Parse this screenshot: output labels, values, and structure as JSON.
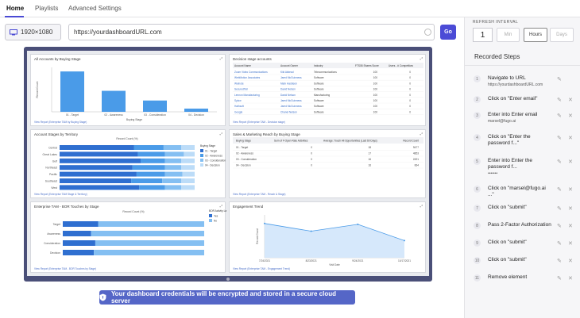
{
  "nav": {
    "tabs": [
      {
        "label": "Home"
      },
      {
        "label": "Playlists"
      },
      {
        "label": "Advanced Settings"
      }
    ]
  },
  "toolbar": {
    "resolution": "1920×1080",
    "url_value": "https://yourdashboardURL.com",
    "go_label": "Go"
  },
  "dashboard": {
    "panels": [
      {
        "title": "All Accounts by Buying Stage",
        "foot": "View Report (Enterprise TAM by Buying Stage)"
      },
      {
        "title": "Decision stage accounts",
        "foot": "View Report (Enterprise TAM - Decision stage)"
      },
      {
        "title": "Account Stages by Territory",
        "foot": "View Report (Enterprise TAM Stage & Territory)"
      },
      {
        "title": "Sales & Marketing Reach by Buying Stage",
        "foot": "View Report (Enterprise TAM - Reach & Stage)"
      },
      {
        "title": "Enterprise TAM - BOR Touches by Stage",
        "foot": "View Report (Enterprise TAM - BOR Touches by Stage)"
      },
      {
        "title": "Engagement Trend",
        "foot": "View Report (Enterprise TAM - Engagement Trend)"
      }
    ],
    "bar_chart": {
      "categories": [
        "01 - Target",
        "02 - Awareness",
        "03 - Consideration",
        "04 - Decision"
      ],
      "values": [
        100,
        52,
        28,
        8
      ],
      "ylim": [
        0,
        110
      ],
      "xlabel": "Buying Stage",
      "ylabel": "Record Count",
      "color": "#4a9be8"
    },
    "decision_table": {
      "headers": [
        "Account Name",
        "Account Owner",
        "Industry",
        "FTS08 Shares Score",
        "Users - # Competitors"
      ],
      "rows": [
        [
          "Zoom Video Communications",
          "Kiki Alstead",
          "Telecommunications",
          "100",
          "0"
        ],
        [
          "WebMotion Associates",
          "Jared McGuinness",
          "Software",
          "100",
          "0"
        ],
        [
          "Welnote",
          "Mark Haddeen",
          "Software",
          "100",
          "0"
        ],
        [
          "SecuredTail",
          "David Nelson",
          "Software",
          "100",
          "0"
        ],
        [
          "Lennon Manufacturing",
          "David Nelson",
          "Manufacturing",
          "100",
          "0"
        ],
        [
          "Sylow",
          "Jared McGuinness",
          "Software",
          "100",
          "0"
        ],
        [
          "Hathsoft",
          "Jared McGuinness",
          "Software",
          "100",
          "0"
        ],
        [
          "Google",
          "Chanel Nelson",
          "Software",
          "100",
          "0"
        ]
      ]
    },
    "territory_chart": {
      "title": "Record Count (%)",
      "territories": [
        "Central",
        "Great Lakes",
        "Gulf",
        "Northeast",
        "Pacific",
        "Southeast",
        "West"
      ],
      "legend_title": "Buying Stage",
      "legend": [
        "01 - Target",
        "02 - Awareness",
        "03 - Consideration",
        "04 - Decision"
      ],
      "colors": [
        "#2f6fd0",
        "#4a9be8",
        "#84bff2",
        "#bcdcf8"
      ],
      "shares": [
        [
          0.55,
          0.22,
          0.13,
          0.1
        ],
        [
          0.58,
          0.2,
          0.14,
          0.08
        ],
        [
          0.6,
          0.18,
          0.12,
          0.1
        ],
        [
          0.54,
          0.24,
          0.12,
          0.1
        ],
        [
          0.57,
          0.21,
          0.13,
          0.09
        ],
        [
          0.53,
          0.23,
          0.14,
          0.1
        ],
        [
          0.59,
          0.19,
          0.12,
          0.1
        ]
      ]
    },
    "reach_table": {
      "headers": [
        "Buying Stage",
        "Sum of # Open Rate Activities",
        "Average: Touch All Opportunities (Last 60 Days)",
        "Record Count"
      ],
      "rows": [
        [
          "01 - Target",
          "0",
          "18",
          "9477"
        ],
        [
          "02 - Awareness",
          "0",
          "17",
          "4853"
        ],
        [
          "03 - Consideration",
          "0",
          "16",
          "2491"
        ],
        [
          "04 - Decision",
          "0",
          "16",
          "664"
        ]
      ]
    },
    "bor_chart": {
      "title": "Record Count (%)",
      "categories": [
        "Target",
        "Awareness",
        "Consideration",
        "Decision"
      ],
      "legend_title": "BOR Activity Last",
      "legend": [
        "Yes",
        "No"
      ],
      "colors": [
        "#2f6fd0",
        "#84bff2"
      ],
      "yes_share": [
        0.25,
        0.2,
        0.23,
        0.22
      ]
    },
    "trend_chart": {
      "x": [
        "7/24/2021",
        "8/23/2021",
        "9/24/2021",
        "10/17/2021"
      ],
      "values": [
        80,
        62,
        78,
        40
      ],
      "ylim": [
        0,
        100
      ],
      "ylabel": "Record Count",
      "xlabel": "Visit Date",
      "color": "#4a9be8"
    }
  },
  "notice": "Your dashboard credentials will be encrypted and stored in a secure cloud server",
  "refresh": {
    "label": "REFRESH INTERVAL",
    "value": "1",
    "units": [
      {
        "label": "Min",
        "active": false
      },
      {
        "label": "Hours",
        "active": true
      },
      {
        "label": "Days",
        "active": false
      }
    ]
  },
  "recorded_steps": {
    "title": "Recorded Steps",
    "steps": [
      {
        "num": "1",
        "text": "Navigate to URL",
        "sub": "https://yourdashboardURL.com"
      },
      {
        "num": "2",
        "text": "Click on \"Enter email\"",
        "sub": ""
      },
      {
        "num": "3",
        "text": "Enter into Enter email",
        "sub": "marsel@fugo.ai"
      },
      {
        "num": "4",
        "text": "Click on \"Enter the password f...\"",
        "sub": ""
      },
      {
        "num": "5",
        "text": "Enter into Enter the password f...",
        "sub": "•••••••"
      },
      {
        "num": "6",
        "text": "Click on \"marsel@fugo.ai ...\"",
        "sub": ""
      },
      {
        "num": "7",
        "text": "Click on \"submit\"",
        "sub": ""
      },
      {
        "num": "8",
        "text": "Pass 2-Factor Authorization",
        "sub": ""
      },
      {
        "num": "9",
        "text": "Click on \"submit\"",
        "sub": ""
      },
      {
        "num": "10",
        "text": "Click on \"submit\"",
        "sub": ""
      },
      {
        "num": "11",
        "text": "Remove element",
        "sub": ""
      }
    ]
  },
  "colors": {
    "accent": "#4b4bd6",
    "notice_bg": "#5566c7",
    "stage_frame": "#4a4f78"
  },
  "icons": [
    "monitor-icon",
    "shield-icon",
    "pencil-icon",
    "close-icon"
  ]
}
